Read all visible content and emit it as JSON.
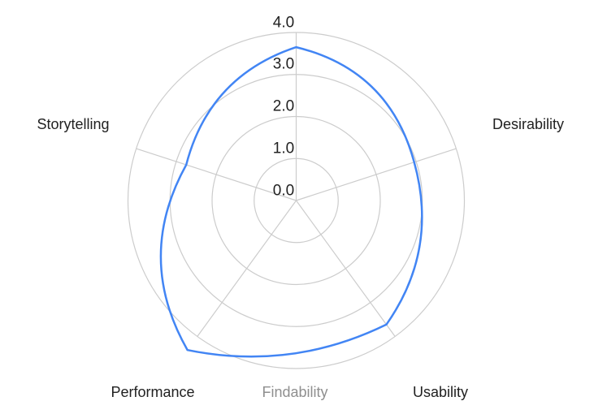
{
  "chart_data": {
    "type": "radar",
    "categories": [
      "Findability",
      "Desirability",
      "Usability",
      "Performance",
      "Storytelling"
    ],
    "values": [
      3.65,
      2.95,
      3.65,
      4.4,
      2.75
    ],
    "axis": {
      "min": 0,
      "max": 4,
      "tick_labels": [
        "0.0",
        "1.0",
        "2.0",
        "3.0",
        "4.0"
      ]
    },
    "grid": "circular",
    "legend": "none",
    "colors": {
      "series_line": "#4285f4",
      "grid_line": "#cccccc",
      "tick_label": "#212121",
      "category_label": "#212121",
      "muted_category_label": "#8f8f8f",
      "background": "#ffffff"
    }
  }
}
